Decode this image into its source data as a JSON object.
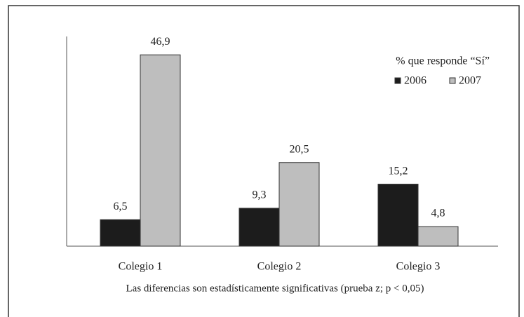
{
  "chart_data": {
    "type": "bar",
    "categories": [
      "Colegio 1",
      "Colegio 2",
      "Colegio 3"
    ],
    "series": [
      {
        "name": "2006",
        "color": "#1c1c1c",
        "values": [
          6.5,
          9.3,
          15.2
        ],
        "value_labels": [
          "6,5",
          "9,3",
          "15,2"
        ]
      },
      {
        "name": "2007",
        "color": "#bebebe",
        "values": [
          46.9,
          20.5,
          4.8
        ],
        "value_labels": [
          "46,9",
          "20,5",
          "4,8"
        ]
      }
    ],
    "legend_title": "% que responde “Sí”",
    "note": "Las diferencias son estadísticamente significativas (prueba z; p < 0,05)",
    "ylim": [
      0,
      51.4
    ],
    "grid": false,
    "legend": "upper right"
  }
}
